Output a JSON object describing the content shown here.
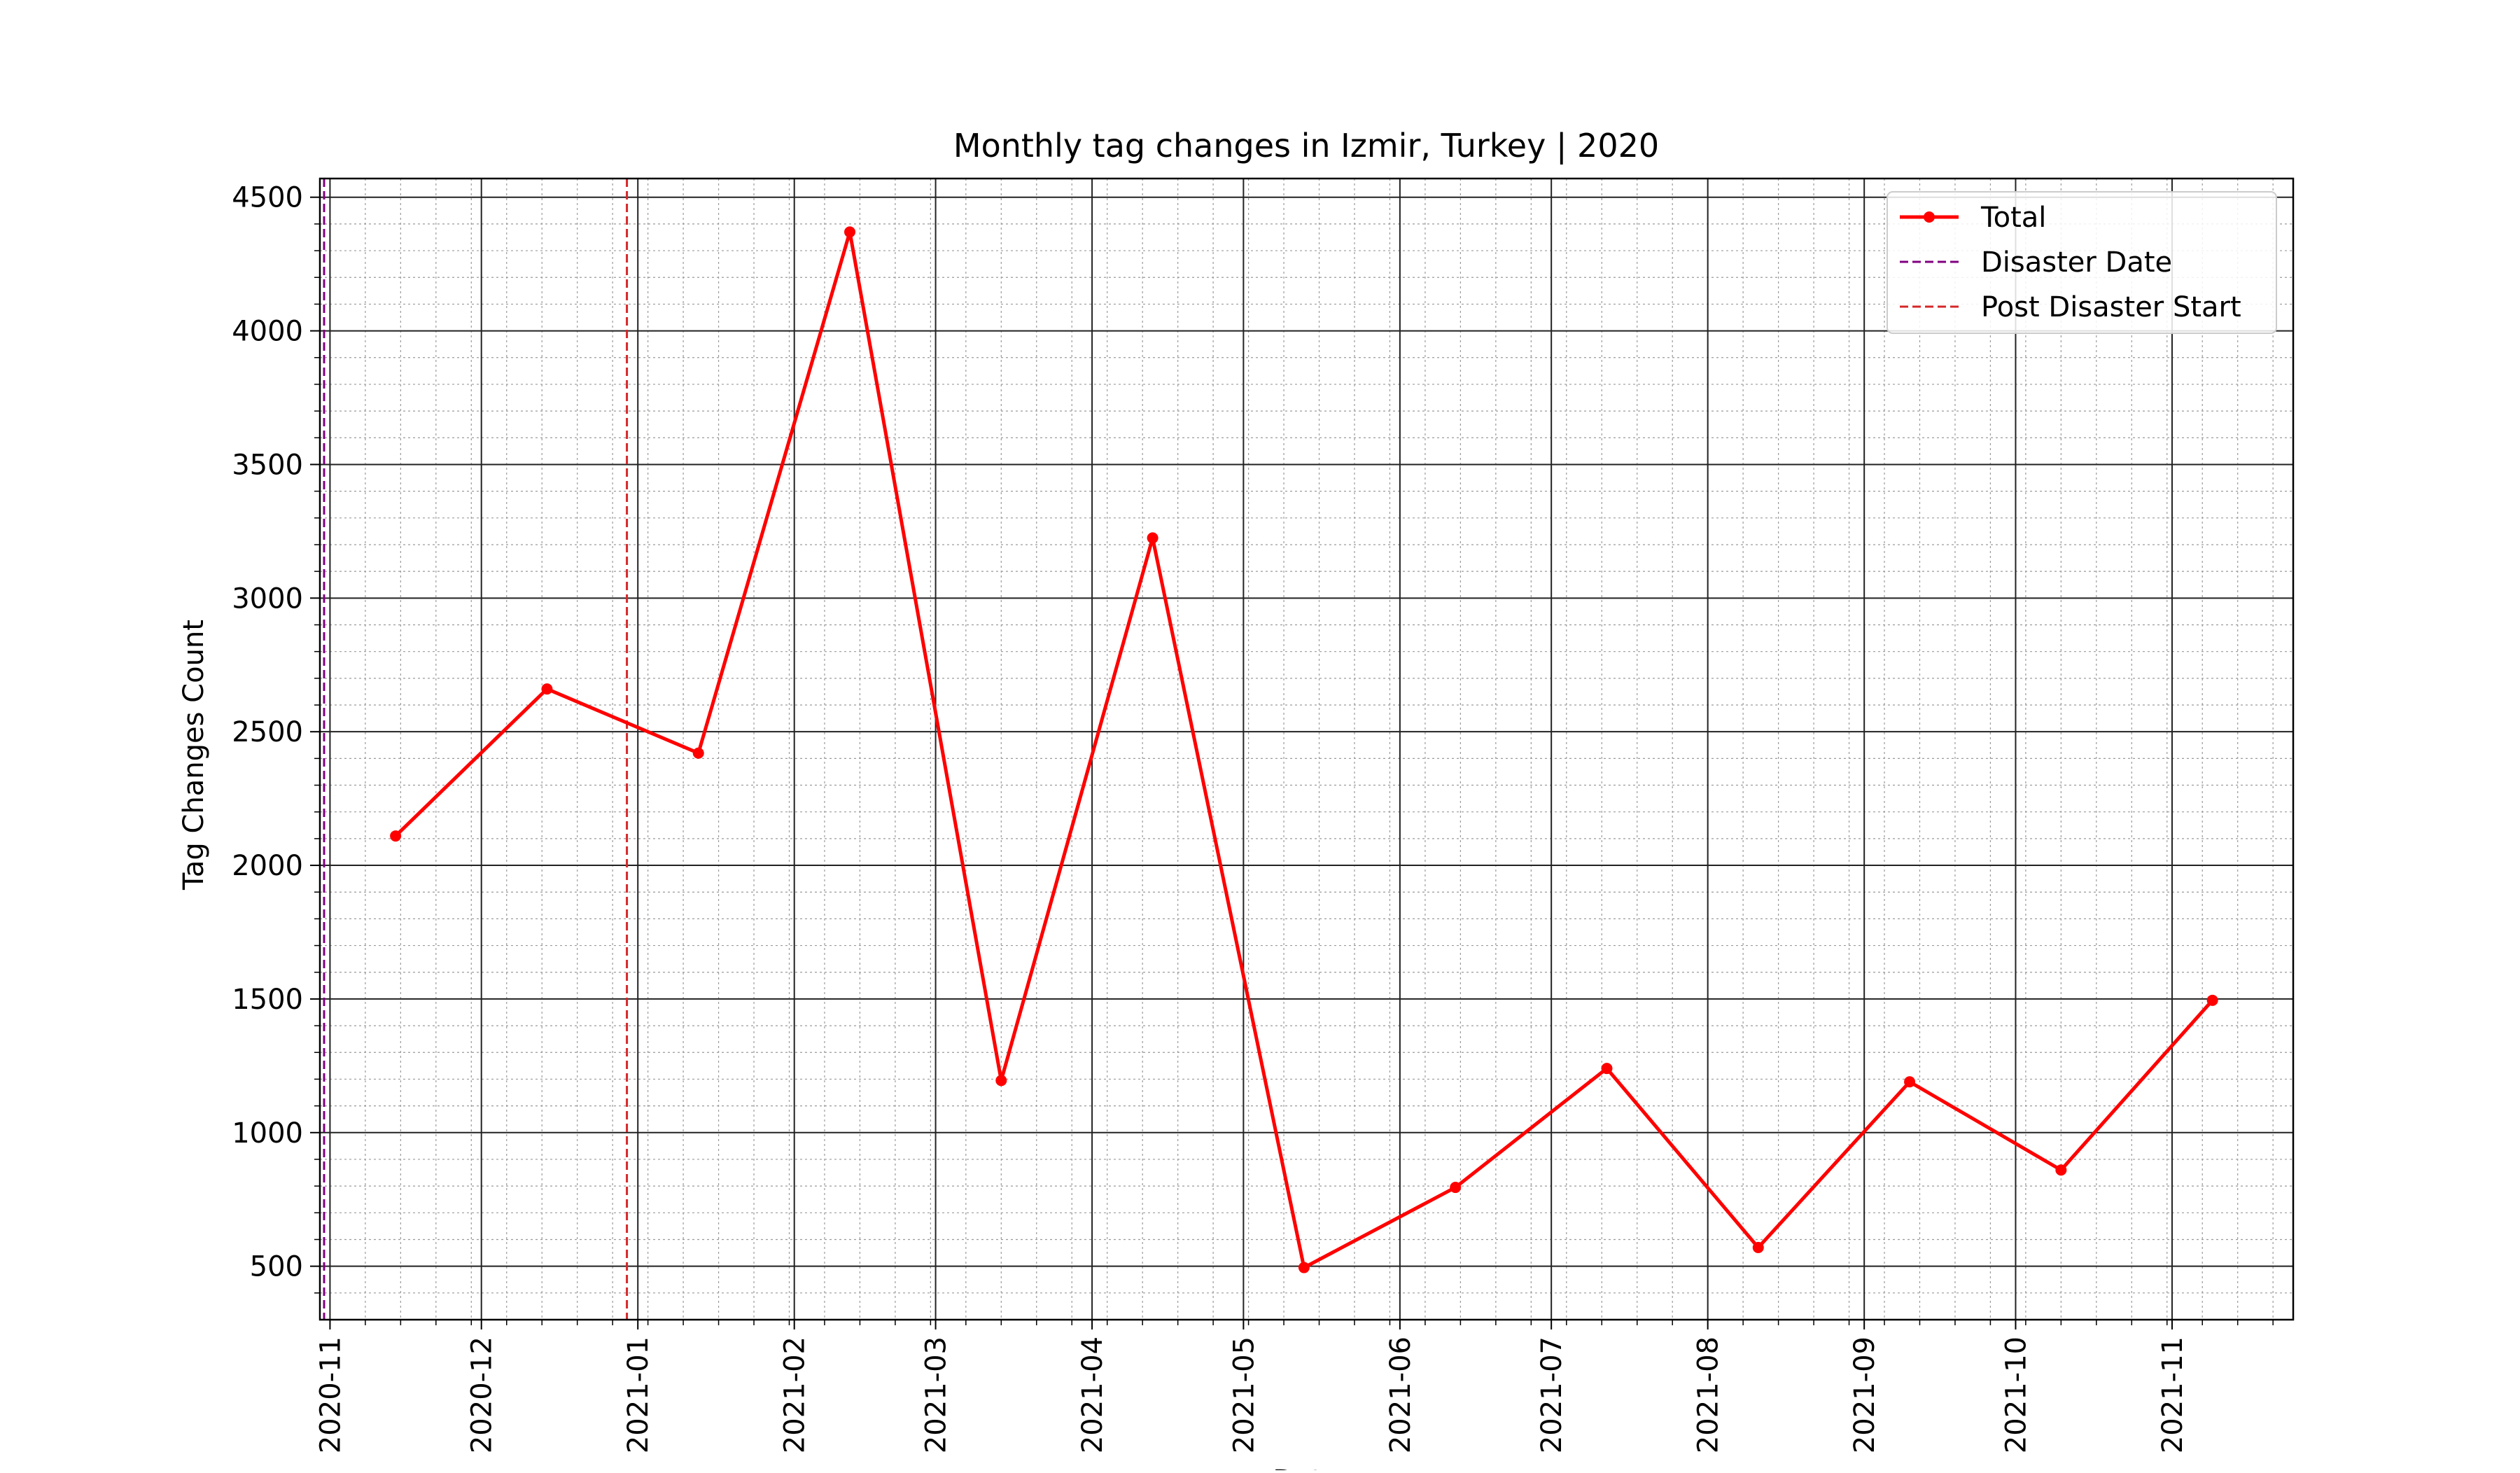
{
  "chart_data": {
    "type": "line",
    "title": "Monthly tag changes in Izmir, Turkey | 2020",
    "xlabel": "Date",
    "ylabel": "Tag Changes Count",
    "x_tick_labels": [
      "2020-11",
      "2020-12",
      "2021-01",
      "2021-02",
      "2021-03",
      "2021-04",
      "2021-05",
      "2021-06",
      "2021-07",
      "2021-08",
      "2021-09",
      "2021-10",
      "2021-11"
    ],
    "x_tick_dates": [
      "2020-11-01",
      "2020-12-01",
      "2021-01-01",
      "2021-02-01",
      "2021-03-01",
      "2021-04-01",
      "2021-05-01",
      "2021-06-01",
      "2021-07-01",
      "2021-08-01",
      "2021-09-01",
      "2021-10-01",
      "2021-11-01"
    ],
    "y_ticks": [
      500,
      1000,
      1500,
      2000,
      2500,
      3000,
      3500,
      4000,
      4500
    ],
    "xlim": [
      "2020-10-30",
      "2021-11-25"
    ],
    "ylim": [
      300,
      4570
    ],
    "grid": {
      "major": true,
      "minor": true
    },
    "legend_position": "upper right",
    "series": [
      {
        "name": "Total",
        "color": "#ff0000",
        "marker": "circle",
        "x": [
          "2020-11-14",
          "2020-12-14",
          "2021-01-13",
          "2021-02-12",
          "2021-03-14",
          "2021-04-13",
          "2021-05-13",
          "2021-06-12",
          "2021-07-12",
          "2021-08-11",
          "2021-09-10",
          "2021-10-10",
          "2021-11-09"
        ],
        "values": [
          2110,
          2660,
          2420,
          4370,
          1195,
          3225,
          495,
          795,
          1240,
          570,
          1190,
          860,
          1495
        ]
      }
    ],
    "vertical_lines": [
      {
        "name": "Disaster Date",
        "date": "2020-10-30",
        "color": "#800080",
        "style": "dashed"
      },
      {
        "name": "Post Disaster Start",
        "date": "2020-12-29",
        "color": "#d62728",
        "style": "dashed"
      }
    ]
  }
}
